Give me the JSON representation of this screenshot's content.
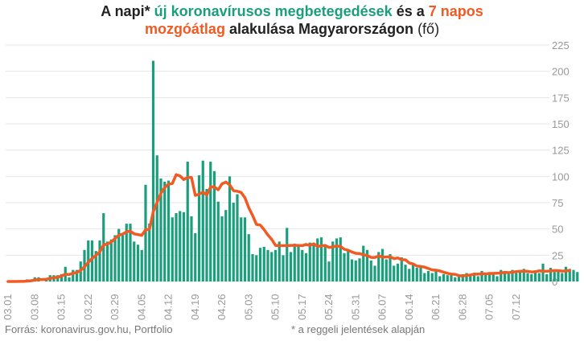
{
  "title": {
    "line1_prefix": "A napi* ",
    "line1_green": "új koronavírusos megbetegedések",
    "line1_mid": " és a ",
    "line1_orange": "7 napos",
    "line2_orange": "mozgóátlag",
    "line2_rest": " alakulása Magyarországon ",
    "line2_unit": "(fő)"
  },
  "footer": {
    "source": "Forrás: koronavirus.gov.hu, Portfolio",
    "note": "* a reggeli jelentések alapján"
  },
  "colors": {
    "bars": "#1a9e7c",
    "line": "#f15a22",
    "grid": "#e4e4e4",
    "axis_text": "#999999"
  },
  "chart_data": {
    "type": "bar",
    "title": "A napi* új koronavírusos megbetegedések és a 7 napos mozgóátlag alakulása Magyarországon (fő)",
    "x_start": "2020-03-01",
    "x_tick_labels": [
      "03.01",
      "03.08",
      "03.15",
      "03.22",
      "03.29",
      "04.05",
      "04.12",
      "04.19",
      "04.26",
      "05.03",
      "05.10",
      "05.17",
      "05.24",
      "05.31",
      "06.07",
      "06.14",
      "06.21",
      "06.28",
      "07.05",
      "07.12"
    ],
    "y_ticks": [
      0,
      25,
      50,
      75,
      100,
      125,
      150,
      175,
      200,
      225
    ],
    "ylim": [
      0,
      225
    ],
    "grid": true,
    "series": [
      {
        "name": "új koronavírusos megbetegedések",
        "type": "bar",
        "values": [
          0,
          0,
          0,
          1,
          0,
          2,
          2,
          4,
          4,
          0,
          3,
          6,
          6,
          6,
          7,
          14,
          4,
          11,
          11,
          19,
          30,
          39,
          39,
          29,
          39,
          65,
          38,
          40,
          44,
          50,
          45,
          55,
          55,
          38,
          35,
          30,
          92,
          55,
          210,
          120,
          98,
          95,
          96,
          61,
          65,
          67,
          66,
          114,
          62,
          46,
          101,
          115,
          88,
          114,
          105,
          76,
          62,
          68,
          100,
          75,
          83,
          61,
          61,
          45,
          26,
          25,
          32,
          33,
          30,
          28,
          30,
          38,
          25,
          51,
          28,
          36,
          35,
          30,
          27,
          37,
          35,
          41,
          42,
          35,
          19,
          38,
          41,
          42,
          27,
          29,
          21,
          20,
          22,
          34,
          30,
          20,
          15,
          28,
          31,
          21,
          26,
          15,
          17,
          23,
          16,
          12,
          17,
          13,
          14,
          8,
          10,
          8,
          12,
          5,
          7,
          6,
          8,
          4,
          5,
          7,
          8,
          6,
          7,
          5,
          10,
          7,
          9,
          8,
          5,
          11,
          9,
          8,
          11,
          8,
          10,
          12,
          8,
          7,
          9,
          8,
          17,
          7,
          13,
          9,
          11,
          8,
          14,
          12,
          11,
          9
        ]
      },
      {
        "name": "7 napos mozgóátlag",
        "type": "line",
        "values": [
          0,
          0,
          0,
          0.1,
          0.1,
          0.4,
          0.7,
          1.3,
          1.9,
          1.9,
          2.1,
          3,
          3.6,
          3.9,
          5.3,
          6.9,
          6.6,
          7.9,
          8.6,
          10.6,
          13.9,
          18.3,
          21.9,
          24.9,
          28.1,
          34.9,
          35.6,
          37.6,
          40.9,
          44.1,
          45.1,
          47.3,
          47.9,
          45.3,
          44.7,
          43.9,
          49.3,
          49.7,
          66.4,
          75.3,
          83.9,
          89.4,
          92.6,
          93.3,
          101.6,
          100.4,
          97,
          99.1,
          99,
          81.9,
          83,
          85.1,
          82.3,
          89.9,
          90,
          87.3,
          92.9,
          94.6,
          92,
          86.4,
          85.9,
          84.7,
          79.7,
          70.1,
          62.9,
          54.3,
          53.7,
          49.4,
          44.3,
          40,
          34.4,
          34.1,
          34.1,
          34.1,
          34.4,
          34.4,
          34.4,
          34.1,
          35.3,
          34.3,
          35.9,
          33.4,
          33.9,
          34.4,
          32.4,
          33,
          33.7,
          33.4,
          30.7,
          29.7,
          28.1,
          26.8,
          26.6,
          25.3,
          24.7,
          22.9,
          22.9,
          24.3,
          23.3,
          23.3,
          23.6,
          21.7,
          22.4,
          20.7,
          20.7,
          17.6,
          16.7,
          14.6,
          14.3,
          13.7,
          12.3,
          11,
          10.7,
          10,
          8.9,
          7.8,
          7,
          6.8,
          5.6,
          5.3,
          5.9,
          6.1,
          7.1,
          7,
          7.4,
          7.3,
          7.4,
          7.7,
          7.9,
          8.1,
          8.7,
          8.4,
          8.8,
          9.4,
          9.7,
          9.8,
          9.7,
          9,
          9.3,
          10.1,
          9.9,
          9.7,
          10,
          10.4,
          10.3,
          9.9,
          10,
          10.4
        ]
      }
    ]
  }
}
